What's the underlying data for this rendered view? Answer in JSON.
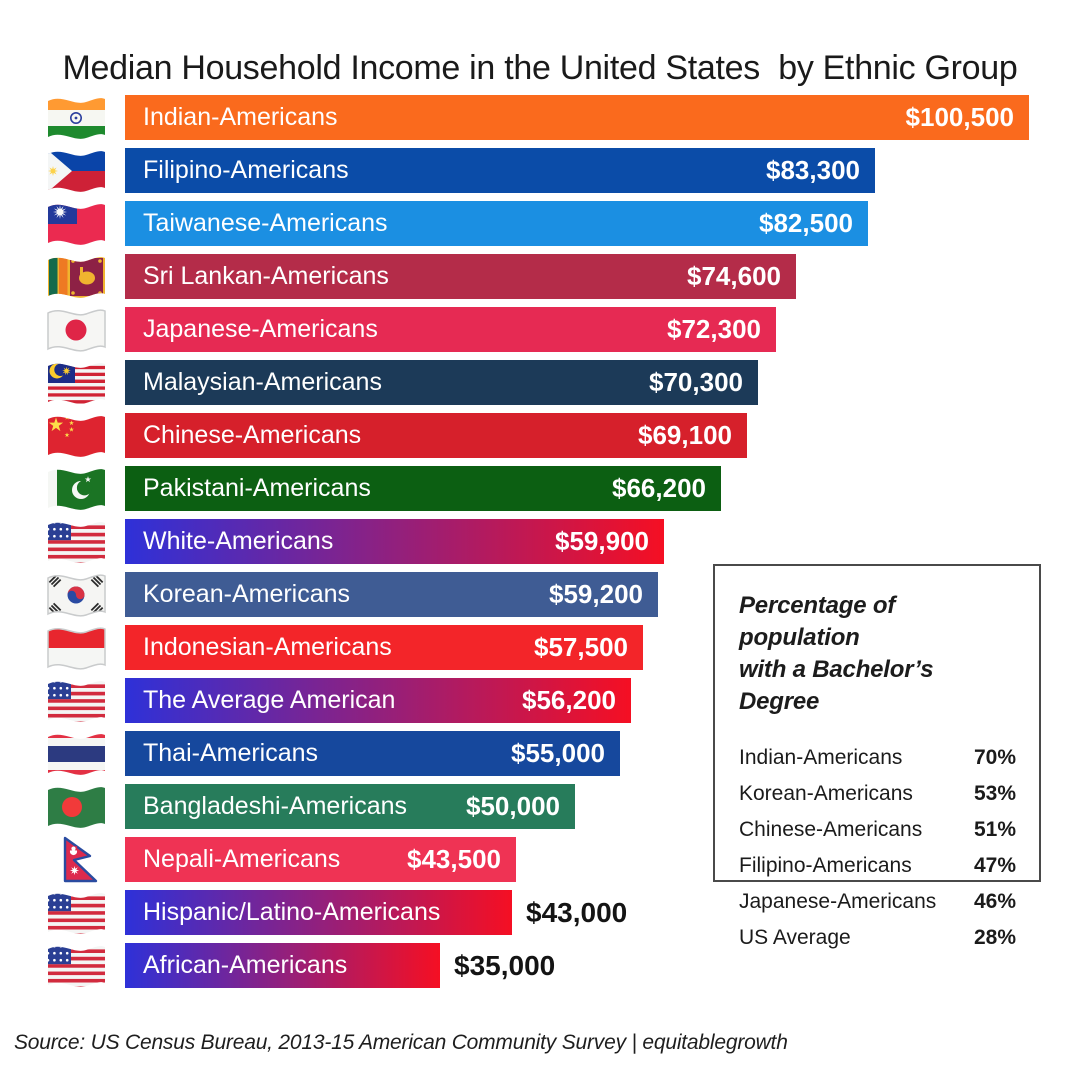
{
  "title": "Median Household Income in the United States  by Ethnic Group",
  "bars": [
    {
      "label": "Indian-Americans",
      "value": 100500,
      "value_label": "$100,500",
      "flag": "india",
      "color": "#FA6A1D",
      "value_inside": true
    },
    {
      "label": "Filipino-Americans",
      "value": 83300,
      "value_label": "$83,300",
      "flag": "philippines",
      "color": "#0B4CA8",
      "value_inside": true
    },
    {
      "label": "Taiwanese-Americans",
      "value": 82500,
      "value_label": "$82,500",
      "flag": "taiwan",
      "color": "#1B8FE2",
      "value_inside": true
    },
    {
      "label": "Sri Lankan-Americans",
      "value": 74600,
      "value_label": "$74,600",
      "flag": "sri-lanka",
      "color": "#B42C49",
      "value_inside": true
    },
    {
      "label": "Japanese-Americans",
      "value": 72300,
      "value_label": "$72,300",
      "flag": "japan",
      "color": "#E62A53",
      "value_inside": true
    },
    {
      "label": "Malaysian-Americans",
      "value": 70300,
      "value_label": "$70,300",
      "flag": "malaysia",
      "color": "#1C3A58",
      "value_inside": true
    },
    {
      "label": "Chinese-Americans",
      "value": 69100,
      "value_label": "$69,100",
      "flag": "china",
      "color": "#D6202B",
      "value_inside": true
    },
    {
      "label": "Pakistani-Americans",
      "value": 66200,
      "value_label": "$66,200",
      "flag": "pakistan",
      "color": "#0C5F12",
      "value_inside": true
    },
    {
      "label": "White-Americans",
      "value": 59900,
      "value_label": "$59,900",
      "flag": "usa",
      "gradient": [
        "#2E31D8",
        "#F50F23"
      ],
      "value_inside": true
    },
    {
      "label": "Korean-Americans",
      "value": 59200,
      "value_label": "$59,200",
      "flag": "south-korea",
      "color": "#3F5C94",
      "value_inside": true
    },
    {
      "label": "Indonesian-Americans",
      "value": 57500,
      "value_label": "$57,500",
      "flag": "indonesia",
      "color": "#F32529",
      "value_inside": true
    },
    {
      "label": "The Average American",
      "value": 56200,
      "value_label": "$56,200",
      "flag": "usa",
      "gradient": [
        "#2E31D8",
        "#F50F23"
      ],
      "value_inside": true
    },
    {
      "label": "Thai-Americans",
      "value": 55000,
      "value_label": "$55,000",
      "flag": "thailand",
      "color": "#16489D",
      "value_inside": true
    },
    {
      "label": "Bangladeshi-Americans",
      "value": 50000,
      "value_label": "$50,000",
      "flag": "bangladesh",
      "color": "#277C5B",
      "value_inside": true
    },
    {
      "label": "Nepali-Americans",
      "value": 43500,
      "value_label": "$43,500",
      "flag": "nepal",
      "color": "#EF3354",
      "value_inside": true
    },
    {
      "label": "Hispanic/Latino-Americans",
      "value": 43000,
      "value_label": "$43,000",
      "flag": "usa",
      "gradient": [
        "#2E31D8",
        "#F50F23"
      ],
      "value_inside": false
    },
    {
      "label": "African-Americans",
      "value": 35000,
      "value_label": "$35,000",
      "flag": "usa",
      "gradient": [
        "#2E31D8",
        "#F50F23"
      ],
      "value_inside": false
    }
  ],
  "side_panel": {
    "title": "Percentage of population\nwith a Bachelor’s Degree",
    "rows": [
      {
        "label": "Indian-Americans",
        "percent": "70%"
      },
      {
        "label": "Korean-Americans",
        "percent": "53%"
      },
      {
        "label": "Chinese-Americans",
        "percent": "51%"
      },
      {
        "label": "Filipino-Americans",
        "percent": "47%"
      },
      {
        "label": "Japanese-Americans",
        "percent": "46%"
      },
      {
        "label": "US Average",
        "percent": "28%"
      }
    ]
  },
  "source": "Source: US Census Bureau, 2013-15 American Community Survey | equitablegrowth",
  "chart_data": {
    "type": "bar",
    "orientation": "horizontal",
    "title": "Median Household Income in the United States by Ethnic Group",
    "categories": [
      "Indian-Americans",
      "Filipino-Americans",
      "Taiwanese-Americans",
      "Sri Lankan-Americans",
      "Japanese-Americans",
      "Malaysian-Americans",
      "Chinese-Americans",
      "Pakistani-Americans",
      "White-Americans",
      "Korean-Americans",
      "Indonesian-Americans",
      "The Average American",
      "Thai-Americans",
      "Bangladeshi-Americans",
      "Nepali-Americans",
      "Hispanic/Latino-Americans",
      "African-Americans"
    ],
    "values": [
      100500,
      83300,
      82500,
      74600,
      72300,
      70300,
      69100,
      66200,
      59900,
      59200,
      57500,
      56200,
      55000,
      50000,
      43500,
      43000,
      35000
    ],
    "value_labels": [
      "$100,500",
      "$83,300",
      "$82,500",
      "$74,600",
      "$72,300",
      "$70,300",
      "$69,100",
      "$66,200",
      "$59,900",
      "$59,200",
      "$57,500",
      "$56,200",
      "$55,000",
      "$50,000",
      "$43,500",
      "$43,000",
      "$35,000"
    ],
    "xlim": [
      0,
      100500
    ],
    "grid": false,
    "bar_colors": [
      "#FA6A1D",
      "#0B4CA8",
      "#1B8FE2",
      "#B42C49",
      "#E62A53",
      "#1C3A58",
      "#D6202B",
      "#0C5F12",
      "blue-red-gradient",
      "#3F5C94",
      "#F32529",
      "blue-red-gradient",
      "#16489D",
      "#277C5B",
      "#EF3354",
      "blue-red-gradient",
      "blue-red-gradient"
    ],
    "inset_table": {
      "title": "Percentage of population with a Bachelor’s Degree",
      "rows": [
        [
          "Indian-Americans",
          "70%"
        ],
        [
          "Korean-Americans",
          "53%"
        ],
        [
          "Chinese-Americans",
          "51%"
        ],
        [
          "Filipino-Americans",
          "47%"
        ],
        [
          "Japanese-Americans",
          "46%"
        ],
        [
          "US Average",
          "28%"
        ]
      ]
    },
    "source": "Source: US Census Bureau, 2013-15 American Community Survey | equitablegrowth"
  }
}
